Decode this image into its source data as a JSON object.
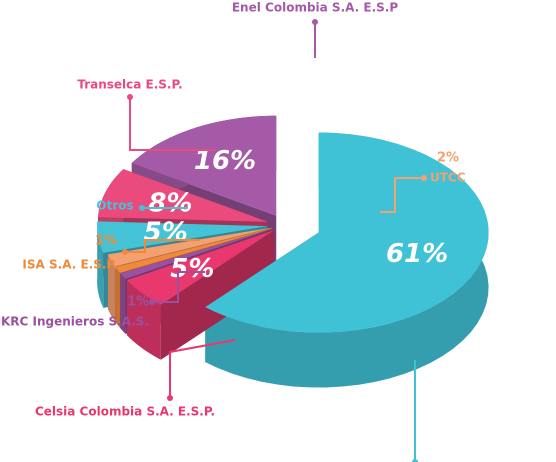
{
  "chart_data": {
    "type": "pie",
    "categories": [
      null,
      "Celsia Colombia S.A. E.S.P.",
      "KRC Ingenieros S.A.S.",
      "ISA S.A. E.S.P.",
      "UTCC",
      "Otros",
      "Transelca E.S.P.",
      "Enel Colombia S.A. E.S.P"
    ],
    "values": [
      61,
      5,
      1,
      1,
      2,
      5,
      8,
      16
    ],
    "value_labels": [
      "61%",
      "5%",
      "1%",
      "1%",
      "2%",
      "5%",
      "8%",
      "16%"
    ],
    "colors": [
      "#3fc1d6",
      "#e8386e",
      "#9a52a0",
      "#f08a3a",
      "#f4a070",
      "#45c3d6",
      "#ea4a7c",
      "#a45aa6"
    ]
  }
}
